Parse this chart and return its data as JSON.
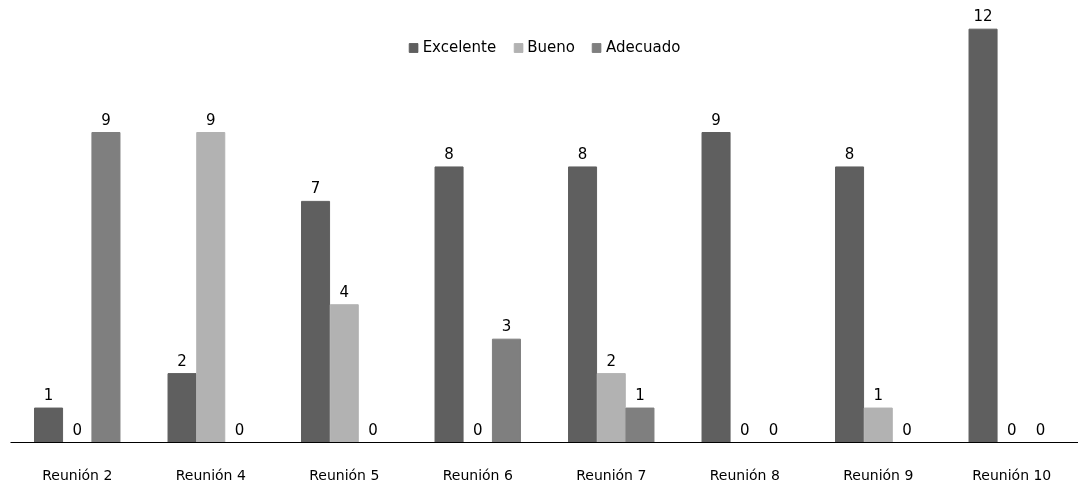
{
  "chart_data": {
    "type": "bar",
    "categories": [
      "Reunión 2",
      "Reunión 4",
      "Reunión 5",
      "Reunión 6",
      "Reunión 7",
      "Reunión 8",
      "Reunión 9",
      "Reunión 10"
    ],
    "series": [
      {
        "name": "Excelente",
        "color": "#5f5f5f",
        "values": [
          1,
          2,
          7,
          8,
          8,
          9,
          8,
          12
        ]
      },
      {
        "name": "Bueno",
        "color": "#b2b2b2",
        "values": [
          0,
          9,
          4,
          0,
          2,
          0,
          1,
          0
        ]
      },
      {
        "name": "Adecuado",
        "color": "#7f7f7f",
        "values": [
          9,
          0,
          0,
          3,
          1,
          0,
          0,
          0
        ]
      }
    ],
    "tick_labels": "x",
    "data_labels": true,
    "legend": "top"
  }
}
